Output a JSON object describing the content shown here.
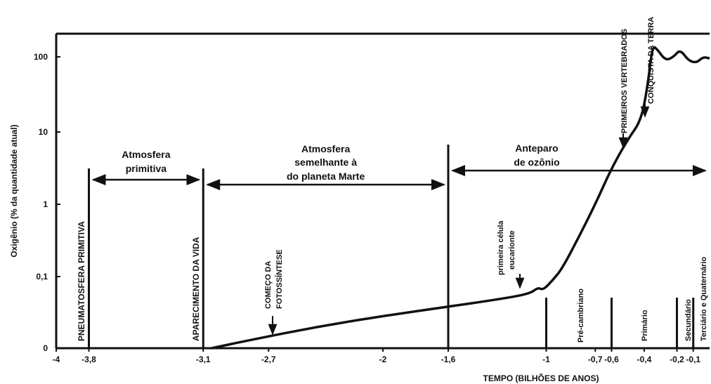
{
  "chart_data": {
    "type": "line",
    "title": "",
    "xlabel": "TEMPO (BILHÕES DE ANOS)",
    "ylabel": "Oxigênio (% da quantidade atual)",
    "xlim": [
      -4,
      0
    ],
    "y_scale": "log",
    "x_ticks": [
      {
        "v": -4,
        "label": "-4"
      },
      {
        "v": -3.8,
        "label": "-3,8"
      },
      {
        "v": -3.1,
        "label": "-3,1"
      },
      {
        "v": -2.7,
        "label": "-2,7"
      },
      {
        "v": -2,
        "label": "-2"
      },
      {
        "v": -1.6,
        "label": "-1,6"
      },
      {
        "v": -1,
        "label": "-1"
      },
      {
        "v": -0.7,
        "label": "-0,7"
      },
      {
        "v": -0.6,
        "label": "-0,6"
      },
      {
        "v": -0.4,
        "label": "-0,4"
      },
      {
        "v": -0.2,
        "label": "-0,2"
      },
      {
        "v": -0.1,
        "label": "-0,1"
      }
    ],
    "y_ticks": [
      {
        "label": "0",
        "level": 0
      },
      {
        "label": "0,1",
        "level": 1
      },
      {
        "label": "1",
        "level": 2
      },
      {
        "label": "10",
        "level": 3
      },
      {
        "label": "100",
        "level": 4
      }
    ],
    "curve": [
      [
        -3.05,
        0
      ],
      [
        -2.8,
        0.12
      ],
      [
        -2.4,
        0.3
      ],
      [
        -2.0,
        0.45
      ],
      [
        -1.6,
        0.58
      ],
      [
        -1.3,
        0.68
      ],
      [
        -1.1,
        0.76
      ],
      [
        -1.05,
        0.85
      ],
      [
        -1.02,
        0.81
      ],
      [
        -0.96,
        0.95
      ],
      [
        -0.9,
        1.12
      ],
      [
        -0.8,
        1.55
      ],
      [
        -0.7,
        2.0
      ],
      [
        -0.6,
        2.5
      ],
      [
        -0.5,
        2.9
      ],
      [
        -0.42,
        3.15
      ],
      [
        -0.38,
        3.6
      ],
      [
        -0.35,
        4.15
      ],
      [
        -0.32,
        4.1
      ],
      [
        -0.27,
        3.95
      ],
      [
        -0.22,
        4.0
      ],
      [
        -0.18,
        4.1
      ],
      [
        -0.13,
        3.95
      ],
      [
        -0.08,
        3.92
      ],
      [
        -0.04,
        4.0
      ],
      [
        0,
        3.98
      ]
    ],
    "regions": [
      {
        "label_lines": [
          "Atmosfera",
          "primitiva"
        ],
        "from": -3.8,
        "to": -3.1
      },
      {
        "label_lines": [
          "Atmosfera",
          "semelhante à",
          "do planeta Marte"
        ],
        "from": -3.1,
        "to": -1.6
      },
      {
        "label_lines": [
          "Anteparo",
          "de ozônio"
        ],
        "from": -1.6,
        "to": 0
      }
    ],
    "events": [
      {
        "label": "PNEUMATOSFERA PRIMITIVA",
        "x": -3.8
      },
      {
        "label": "APARECIMENTO DA VIDA",
        "x": -3.1
      },
      {
        "label": "COMEÇO DA",
        "label2": "FOTOSSÍNTESE",
        "x": -2.7
      },
      {
        "label": "primeira célula",
        "label2": "eucarionte",
        "x": -1.2
      },
      {
        "label": "PRIMEIROS VERTEBRADOS",
        "x": -0.5
      },
      {
        "label": "CONQUISTA DA TERRA",
        "x": -0.36
      }
    ],
    "eras": [
      {
        "label": "Pré-cambriano",
        "x": -1.0
      },
      {
        "label": "Primário",
        "x": -0.6
      },
      {
        "label": "Secundário",
        "x": -0.23
      },
      {
        "label": "Terciário e Quaternário",
        "x": -0.07
      }
    ]
  }
}
